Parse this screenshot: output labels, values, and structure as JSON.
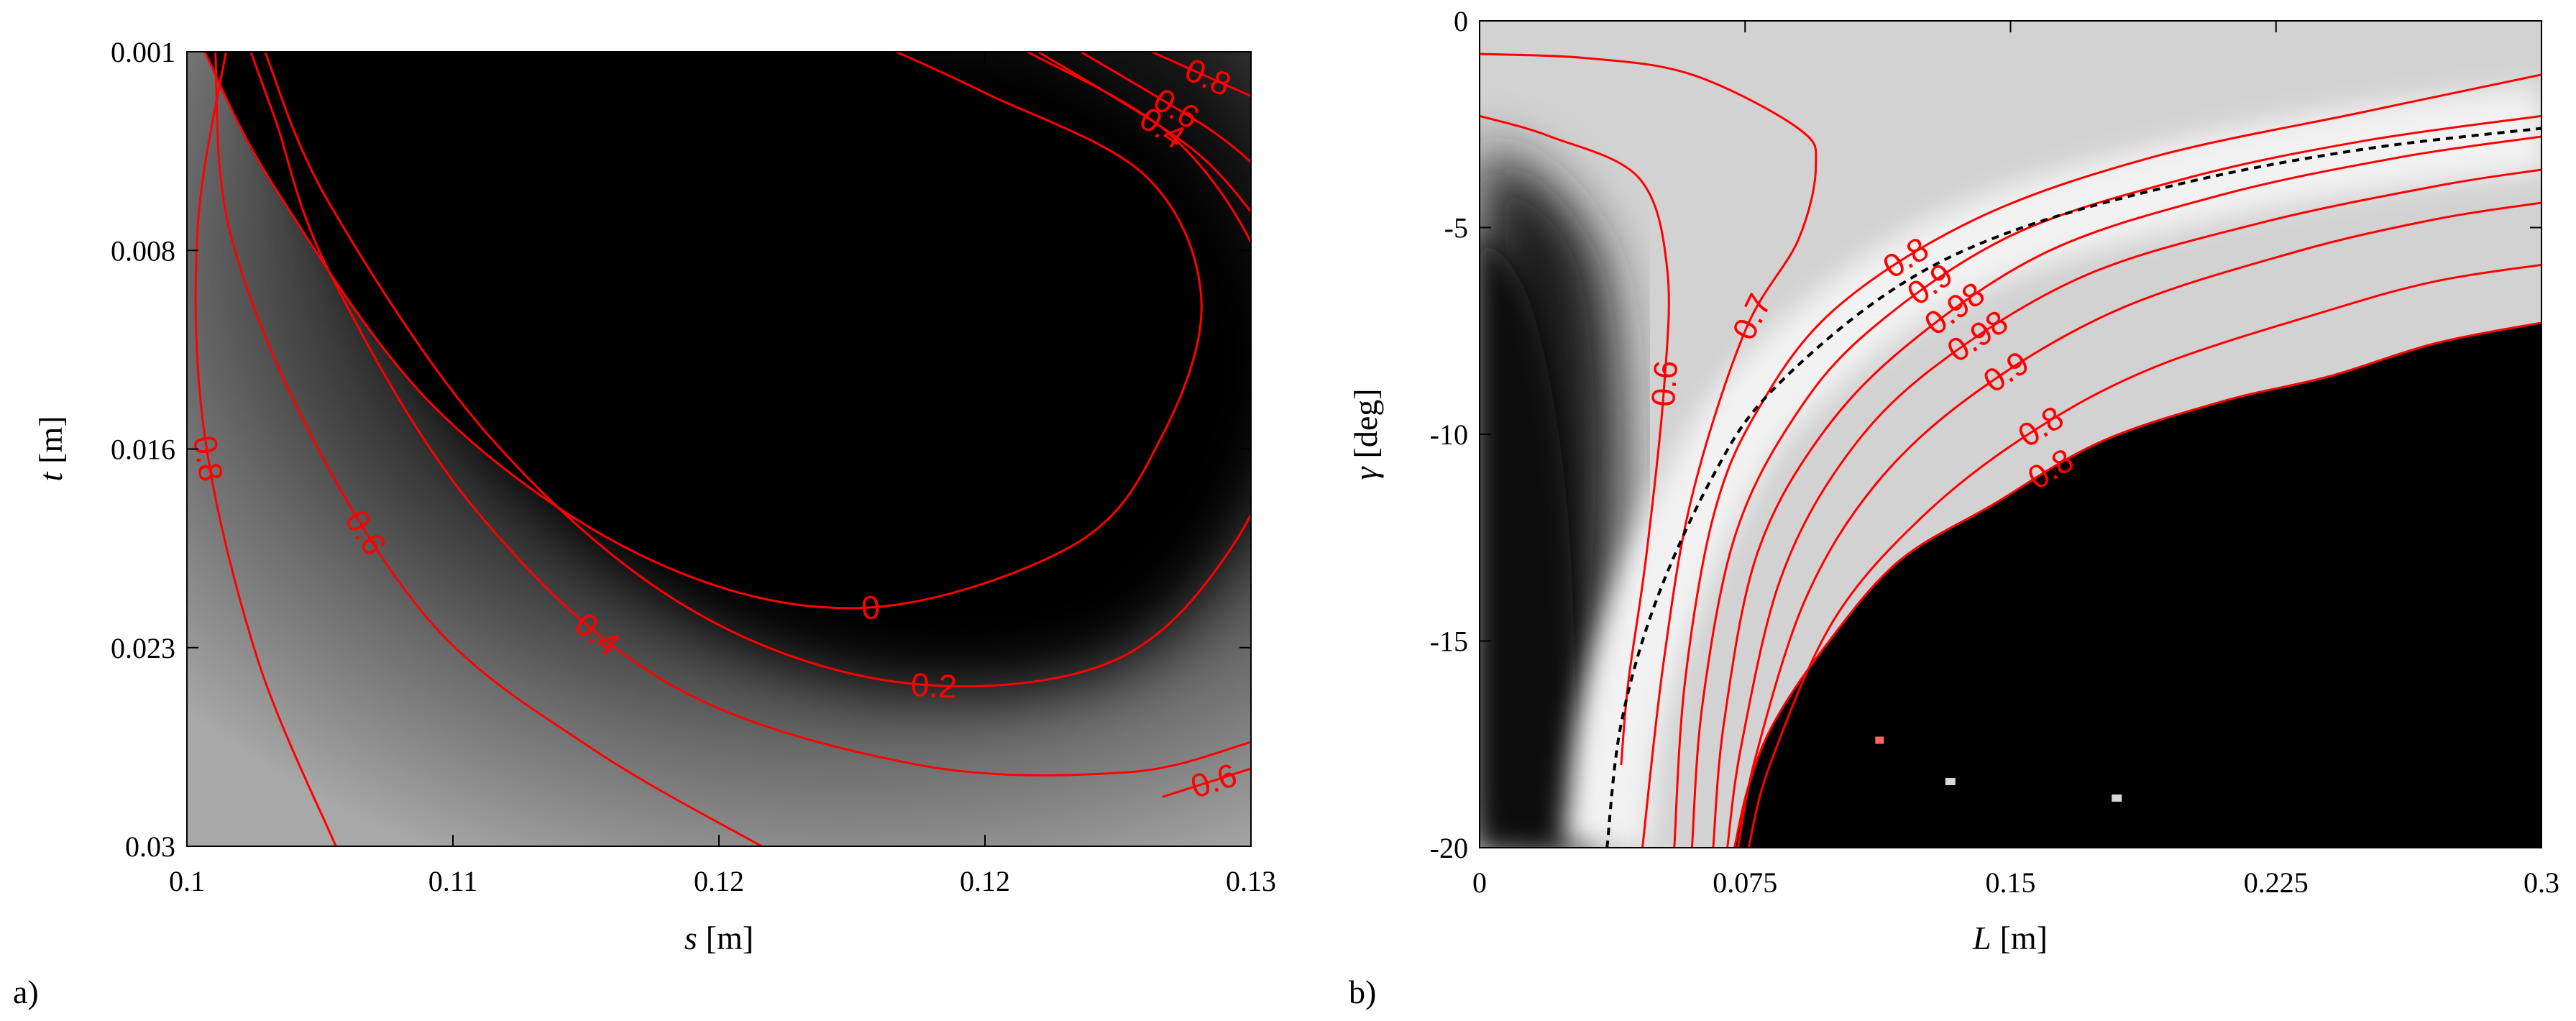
{
  "panels": [
    {
      "id": "a",
      "panel_label": "a)",
      "x_axis": {
        "symbol": "s",
        "unit": "[m]",
        "ticks": [
          "0.1",
          "0.11",
          "0.12",
          "0.12",
          "0.13"
        ]
      },
      "y_axis": {
        "symbol": "t",
        "unit": "[m]",
        "ticks": [
          "0.001",
          "0.008",
          "0.016",
          "0.023",
          "0.03"
        ]
      }
    },
    {
      "id": "b",
      "panel_label": "b)",
      "x_axis": {
        "symbol": "L",
        "unit": "[m]",
        "ticks": [
          "0",
          "0.075",
          "0.15",
          "0.225",
          "0.3"
        ]
      },
      "y_axis": {
        "symbol": "γ",
        "unit": "[deg]",
        "ticks": [
          "0",
          "-5",
          "-10",
          "-15",
          "-20"
        ]
      }
    }
  ],
  "chart_data": [
    {
      "type": "heatmap",
      "panel": "a",
      "xlabel": "s [m]",
      "ylabel": "t [m]",
      "xlim": [
        0.1,
        0.13
      ],
      "ylim": [
        0.001,
        0.03
      ],
      "y_reversed": true,
      "x_ticks": [
        "0.1",
        "0.11",
        "0.12",
        "0.12",
        "0.13"
      ],
      "y_ticks": [
        "0.001",
        "0.008",
        "0.016",
        "0.023",
        "0.03"
      ],
      "colormap": "gray",
      "contour_color": "#ff0000",
      "contours": [
        {
          "level": 0,
          "label": "0",
          "points": [
            [
              0.1005,
              0.001
            ],
            [
              0.1025,
              0.006
            ],
            [
              0.107,
              0.014
            ],
            [
              0.113,
              0.0195
            ],
            [
              0.119,
              0.0213
            ],
            [
              0.125,
              0.019
            ],
            [
              0.1275,
              0.015
            ],
            [
              0.1286,
              0.01
            ],
            [
              0.127,
              0.0055
            ],
            [
              0.1225,
              0.0025
            ],
            [
              0.12,
              0.001
            ]
          ]
        },
        {
          "level": 0.2,
          "label": "0.2",
          "points": [
            [
              0.1022,
              0.001
            ],
            [
              0.104,
              0.0065
            ],
            [
              0.1085,
              0.015
            ],
            [
              0.114,
              0.0212
            ],
            [
              0.12,
              0.024
            ],
            [
              0.126,
              0.0233
            ],
            [
              0.1295,
              0.019
            ],
            [
              0.131,
              0.0135
            ],
            [
              0.1302,
              0.0085
            ],
            [
              0.1277,
              0.004
            ],
            [
              0.1237,
              0.001
            ]
          ]
        },
        {
          "level": 0.4,
          "label": "0.4",
          "points": [
            [
              0.1018,
              0.001
            ],
            [
              0.1025,
              0.0035
            ],
            [
              0.104,
              0.009
            ],
            [
              0.108,
              0.0175
            ],
            [
              0.1135,
              0.024
            ],
            [
              0.1205,
              0.027
            ],
            [
              0.1265,
              0.0273
            ],
            [
              0.13,
              0.0262
            ]
          ]
        },
        {
          "level": 0.4,
          "label": "0.4",
          "points": [
            [
              0.124,
              0.001
            ],
            [
              0.1283,
              0.0045
            ],
            [
              0.1304,
              0.0075
            ]
          ]
        },
        {
          "level": 0.6,
          "label": "0.6",
          "points": [
            [
              0.1008,
              0.001
            ],
            [
              0.1012,
              0.0075
            ],
            [
              0.1035,
              0.015
            ],
            [
              0.107,
              0.022
            ],
            [
              0.1115,
              0.0265
            ],
            [
              0.1162,
              0.03
            ]
          ]
        },
        {
          "level": 0.6,
          "label": "0.6",
          "points": [
            [
              0.1252,
              0.001
            ],
            [
              0.1288,
              0.0038
            ],
            [
              0.1304,
              0.0055
            ]
          ]
        },
        {
          "level": 0.6,
          "label": "0.6",
          "points": [
            [
              0.1275,
              0.0282
            ],
            [
              0.1304,
              0.027
            ]
          ]
        },
        {
          "level": 0.8,
          "label": "0.8",
          "points": [
            [
              0.1011,
              0.001
            ],
            [
              0.1003,
              0.0075
            ],
            [
              0.1005,
              0.015
            ],
            [
              0.102,
              0.0232
            ],
            [
              0.1042,
              0.03
            ]
          ]
        },
        {
          "level": 0.8,
          "label": "0.8",
          "points": [
            [
              0.1272,
              0.001
            ],
            [
              0.1298,
              0.0025
            ],
            [
              0.1304,
              0.0028
            ]
          ]
        }
      ]
    },
    {
      "type": "heatmap",
      "panel": "b",
      "xlabel": "L [m]",
      "ylabel": "γ [deg]",
      "xlim": [
        0,
        0.3
      ],
      "ylim": [
        -20,
        0
      ],
      "x_ticks": [
        "0",
        "0.075",
        "0.15",
        "0.225",
        "0.3"
      ],
      "y_ticks": [
        "0",
        "-5",
        "-10",
        "-15",
        "-20"
      ],
      "colormap": "gray",
      "contour_color": "#ff0000",
      "dashed_curve": [
        [
          0.036,
          -20
        ],
        [
          0.04,
          -17
        ],
        [
          0.05,
          -14
        ],
        [
          0.066,
          -11
        ],
        [
          0.082,
          -9
        ],
        [
          0.115,
          -6.6
        ],
        [
          0.15,
          -5.1
        ],
        [
          0.2,
          -3.9
        ],
        [
          0.25,
          -3.1
        ],
        [
          0.3,
          -2.6
        ]
      ],
      "black_region_boundary": [
        [
          0.072,
          -20
        ],
        [
          0.076,
          -18.5
        ],
        [
          0.083,
          -17
        ],
        [
          0.097,
          -15.2
        ],
        [
          0.118,
          -13.1
        ],
        [
          0.145,
          -11.7
        ],
        [
          0.175,
          -10.2
        ],
        [
          0.21,
          -9.2
        ],
        [
          0.24,
          -8.6
        ],
        [
          0.27,
          -7.8
        ],
        [
          0.3,
          -7.3
        ]
      ],
      "contours": [
        {
          "level": 0.6,
          "label": "0.6",
          "points": [
            [
              0,
              -2.3
            ],
            [
              0.02,
              -2.8
            ],
            [
              0.045,
              -3.8
            ],
            [
              0.053,
              -6
            ],
            [
              0.052,
              -9
            ],
            [
              0.047,
              -13
            ],
            [
              0.042,
              -16
            ],
            [
              0.04,
              -18
            ]
          ]
        },
        {
          "level": 0.7,
          "label": "0.7",
          "points": [
            [
              0,
              -0.8
            ],
            [
              0.03,
              -0.9
            ],
            [
              0.06,
              -1.3
            ],
            [
              0.09,
              -2.6
            ],
            [
              0.095,
              -3.5
            ],
            [
              0.09,
              -5.3
            ],
            [
              0.075,
              -7.5
            ],
            [
              0.06,
              -11.5
            ],
            [
              0.052,
              -15.5
            ],
            [
              0.046,
              -20
            ]
          ]
        },
        {
          "level": 0.8,
          "label": "0.8",
          "points": [
            [
              0.055,
              -20
            ],
            [
              0.058,
              -16
            ],
            [
              0.066,
              -12
            ],
            [
              0.078,
              -9.5
            ],
            [
              0.1,
              -7
            ],
            [
              0.14,
              -4.8
            ],
            [
              0.19,
              -3.3
            ],
            [
              0.25,
              -2.2
            ],
            [
              0.3,
              -1.3
            ]
          ]
        },
        {
          "level": 0.9,
          "label": "0.9",
          "points": [
            [
              0.06,
              -20
            ],
            [
              0.063,
              -16.5
            ],
            [
              0.072,
              -12.5
            ],
            [
              0.088,
              -9.7
            ],
            [
              0.11,
              -7.5
            ],
            [
              0.15,
              -5.2
            ],
            [
              0.2,
              -3.8
            ],
            [
              0.25,
              -2.9
            ],
            [
              0.3,
              -2.3
            ]
          ]
        },
        {
          "level": 0.98,
          "label": "0.98",
          "points": [
            [
              0.066,
              -20
            ],
            [
              0.069,
              -17
            ],
            [
              0.078,
              -13
            ],
            [
              0.095,
              -10.2
            ],
            [
              0.12,
              -7.9
            ],
            [
              0.16,
              -5.6
            ],
            [
              0.21,
              -4.2
            ],
            [
              0.26,
              -3.3
            ],
            [
              0.3,
              -2.8
            ]
          ]
        },
        {
          "level": 0.98,
          "label": "0.98",
          "points": [
            [
              0.07,
              -20
            ],
            [
              0.074,
              -17.5
            ],
            [
              0.085,
              -13.5
            ],
            [
              0.103,
              -10.6
            ],
            [
              0.128,
              -8.4
            ],
            [
              0.17,
              -6.2
            ],
            [
              0.22,
              -4.9
            ],
            [
              0.27,
              -4
            ],
            [
              0.3,
              -3.6
            ]
          ]
        },
        {
          "level": 0.9,
          "label": "0.9",
          "points": [
            [
              0.073,
              -20
            ],
            [
              0.078,
              -17.8
            ],
            [
              0.092,
              -14
            ],
            [
              0.112,
              -11.2
            ],
            [
              0.14,
              -9
            ],
            [
              0.18,
              -7
            ],
            [
              0.23,
              -5.6
            ],
            [
              0.27,
              -4.8
            ],
            [
              0.3,
              -4.4
            ]
          ]
        },
        {
          "level": 0.8,
          "label": "0.8",
          "points": [
            [
              0.076,
              -20
            ],
            [
              0.082,
              -18
            ],
            [
              0.1,
              -14.5
            ],
            [
              0.125,
              -12
            ],
            [
              0.155,
              -10
            ],
            [
              0.19,
              -8.4
            ],
            [
              0.24,
              -7
            ],
            [
              0.27,
              -6.3
            ],
            [
              0.3,
              -5.9
            ]
          ]
        },
        {
          "level": 0.8,
          "label": "0.8",
          "points": [
            [
              0.072,
              -20
            ],
            [
              0.076,
              -18.5
            ],
            [
              0.083,
              -17
            ],
            [
              0.097,
              -15.2
            ],
            [
              0.118,
              -13.1
            ],
            [
              0.145,
              -11.7
            ],
            [
              0.175,
              -10.2
            ],
            [
              0.21,
              -9.2
            ],
            [
              0.24,
              -8.6
            ],
            [
              0.27,
              -7.8
            ],
            [
              0.3,
              -7.3
            ]
          ]
        }
      ]
    }
  ]
}
